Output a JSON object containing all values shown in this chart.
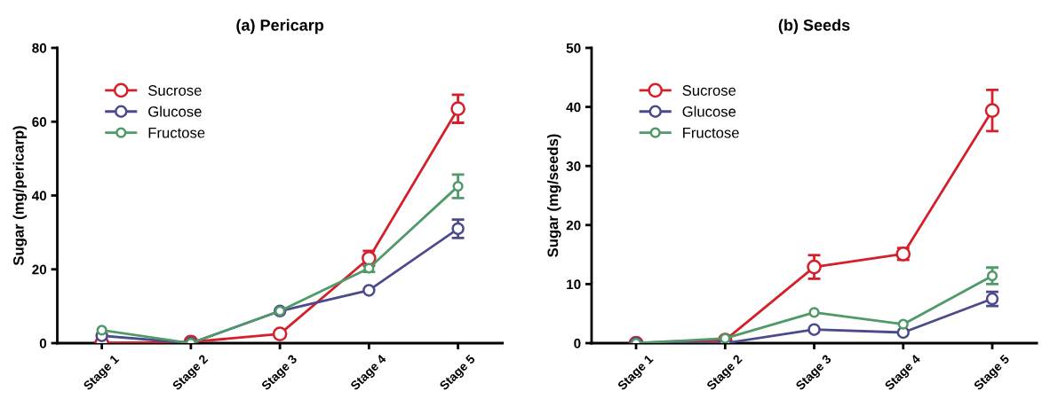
{
  "chart_data": [
    {
      "type": "line",
      "title": "(a) Pericarp",
      "ylabel": "Sugar (mg/pericarp)",
      "categories": [
        "Stage 1",
        "Stage 2",
        "Stage 3",
        "Stage 4",
        "Stage 5"
      ],
      "ylim": [
        0,
        80
      ],
      "yticks": [
        0,
        20,
        40,
        60,
        80
      ],
      "grid": false,
      "legend": "top left",
      "marker": "circle",
      "line_style": "solid",
      "series": [
        {
          "name": "Sucrose",
          "color": "#d4202a",
          "values": [
            0,
            0.3,
            2.5,
            23,
            63.5
          ],
          "errors": [
            null,
            null,
            null,
            2,
            3.8
          ]
        },
        {
          "name": "Glucose",
          "color": "#4a4a8c",
          "values": [
            2,
            0,
            8.7,
            14.3,
            31
          ],
          "errors": [
            null,
            null,
            null,
            null,
            2.5
          ]
        },
        {
          "name": "Fructose",
          "color": "#4f9a68",
          "values": [
            3.5,
            0,
            8.7,
            20.3,
            42.5
          ],
          "errors": [
            null,
            null,
            null,
            1,
            3.2
          ]
        }
      ]
    },
    {
      "type": "line",
      "title": "(b) Seeds",
      "ylabel": "Sugar (mg/seeds)",
      "categories": [
        "Stage 1",
        "Stage 2",
        "Stage 3",
        "Stage 4",
        "Stage 5"
      ],
      "ylim": [
        0,
        50
      ],
      "yticks": [
        0,
        10,
        20,
        30,
        40,
        50
      ],
      "grid": false,
      "legend": "top left",
      "marker": "circle",
      "line_style": "solid",
      "series": [
        {
          "name": "Sucrose",
          "color": "#d4202a",
          "values": [
            0,
            0.5,
            12.9,
            15.1,
            39.4
          ],
          "errors": [
            null,
            null,
            2,
            1,
            3.5
          ]
        },
        {
          "name": "Glucose",
          "color": "#4a4a8c",
          "values": [
            0,
            0,
            2.3,
            1.8,
            7.5
          ],
          "errors": [
            null,
            null,
            null,
            null,
            1.2
          ]
        },
        {
          "name": "Fructose",
          "color": "#4f9a68",
          "values": [
            0,
            0.8,
            5.2,
            3.2,
            11.4
          ],
          "errors": [
            null,
            null,
            null,
            null,
            1.4
          ]
        }
      ]
    }
  ]
}
